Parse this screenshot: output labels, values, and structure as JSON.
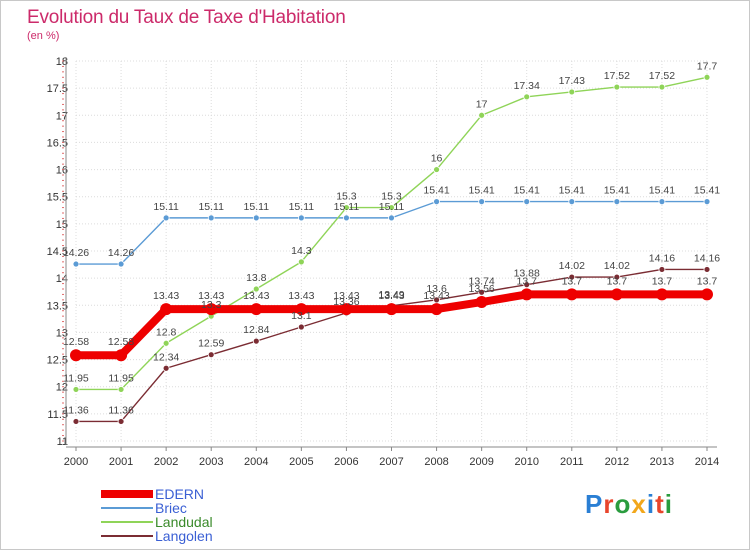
{
  "header": {
    "title": "Evolution du Taux de Taxe d'Habitation",
    "subtitle": "(en %)"
  },
  "logo": {
    "text": "Proxiti",
    "colors": [
      "#2a7fd4",
      "#e8452c",
      "#2a9c3e",
      "#f2a71b",
      "#2a7fd4",
      "#e8452c",
      "#2a9c3e"
    ]
  },
  "chart_data": {
    "type": "line",
    "x": [
      "2000",
      "2001",
      "2002",
      "2003",
      "2004",
      "2005",
      "2006",
      "2007",
      "2008",
      "2009",
      "2010",
      "2011",
      "2012",
      "2013",
      "2014"
    ],
    "ylim": [
      11,
      18
    ],
    "yticks": [
      "11",
      "11.5",
      "12",
      "12.5",
      "13",
      "13.5",
      "14",
      "14.5",
      "15",
      "15.5",
      "16",
      "16.5",
      "17",
      "17.5",
      "18"
    ],
    "grid": true,
    "legend_position": "bottom-left",
    "series": [
      {
        "name": "EDERN",
        "color": "#ee0000",
        "values": [
          12.58,
          12.58,
          13.43,
          13.43,
          13.43,
          13.43,
          13.43,
          13.43,
          13.43,
          13.56,
          13.7,
          13.7,
          13.7,
          13.7,
          13.7
        ],
        "labels": [
          "12.58",
          "12.58",
          "13.43",
          "13.43",
          "13.43",
          "13.43",
          "13.43",
          "13.43",
          "13.43",
          "13.56",
          "13.7",
          "13.7",
          "13.7",
          "13.7",
          "13.7"
        ]
      },
      {
        "name": "Briec",
        "color": "#5b9bd5",
        "values": [
          14.26,
          14.26,
          15.11,
          15.11,
          15.11,
          15.11,
          15.11,
          15.11,
          15.41,
          15.41,
          15.41,
          15.41,
          15.41,
          15.41,
          15.41
        ],
        "labels": [
          "14.26",
          "14.26",
          "15.11",
          "15.11",
          "15.11",
          "15.11",
          "15.11",
          "15.11",
          "15.41",
          "15.41",
          "15.41",
          "15.41",
          "15.41",
          "15.41",
          "15.41"
        ]
      },
      {
        "name": "Landudal",
        "color": "#8fd458",
        "values": [
          11.95,
          11.95,
          12.8,
          13.3,
          13.8,
          14.3,
          15.3,
          15.3,
          16,
          17,
          17.34,
          17.43,
          17.52,
          17.52,
          17.7
        ],
        "labels": [
          "11.95",
          "11.95",
          "12.8",
          "13.3",
          "13.8",
          "14.3",
          "15.3",
          "15.3",
          "16",
          "17",
          "17.34",
          "17.43",
          "17.52",
          "17.52",
          "17.7"
        ]
      },
      {
        "name": "Langolen",
        "color": "#7b2c33",
        "values": [
          11.36,
          11.36,
          12.34,
          12.59,
          12.84,
          13.1,
          13.36,
          13.49,
          13.6,
          13.74,
          13.88,
          14.02,
          14.02,
          14.16,
          14.16
        ],
        "labels": [
          "11.36",
          "11.36",
          "12.34",
          "12.59",
          "12.84",
          "13.1",
          "13.36",
          "13.49",
          "13.6",
          "13.74",
          "13.88",
          "14.02",
          "14.02",
          "14.16",
          "14.16"
        ]
      }
    ]
  }
}
